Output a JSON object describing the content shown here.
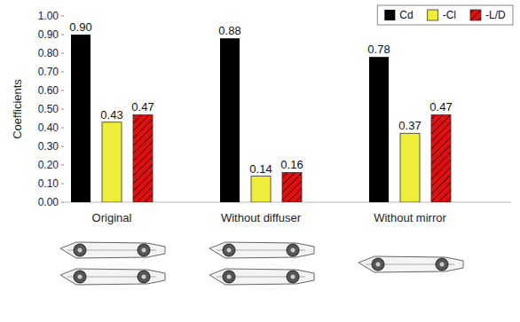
{
  "chart_data": {
    "type": "bar",
    "y_label": "Coefficients",
    "categories": [
      "Original",
      "Without diffuser",
      "Without mirror"
    ],
    "series": [
      {
        "name": "Cd",
        "color": "#000000",
        "values": [
          0.9,
          0.88,
          0.78
        ],
        "value_labels": [
          "0.90",
          "0.88",
          "0.78"
        ]
      },
      {
        "name": "-Cl",
        "color": "#eeee3a",
        "values": [
          0.43,
          0.14,
          0.37
        ],
        "value_labels": [
          "0.43",
          "0.14",
          "0.37"
        ]
      },
      {
        "name": "-L/D",
        "color": "#e01010",
        "values": [
          0.47,
          0.16,
          0.47
        ],
        "value_labels": [
          "0.47",
          "0.16",
          "0.47"
        ]
      }
    ],
    "ylim": [
      0,
      1
    ],
    "yticks": [
      {
        "value": 0,
        "label": "0.00"
      },
      {
        "value": 0.1,
        "label": "0.10"
      },
      {
        "value": 0.2,
        "label": "0.20"
      },
      {
        "value": 0.3,
        "label": "0.30"
      },
      {
        "value": 0.4,
        "label": "0.40"
      },
      {
        "value": 0.5,
        "label": "0.50"
      },
      {
        "value": 0.6,
        "label": "0.60"
      },
      {
        "value": 0.7,
        "label": "0.70"
      },
      {
        "value": 0.8,
        "label": "0.80"
      },
      {
        "value": 0.9,
        "label": "0.90"
      },
      {
        "value": 1,
        "label": "1.00"
      }
    ],
    "grid": false,
    "legend": "top-right",
    "data_labels": true
  }
}
